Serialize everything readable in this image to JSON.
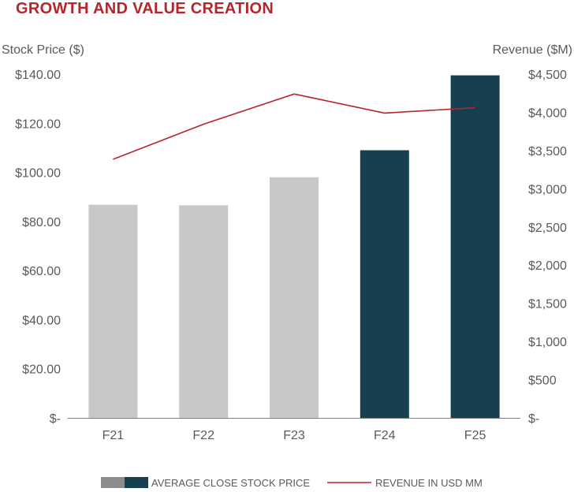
{
  "chart_data": {
    "type": "bar+line",
    "title": "GROWTH AND VALUE CREATION",
    "categories": [
      "F21",
      "F22",
      "F23",
      "F24",
      "F25"
    ],
    "series": [
      {
        "name": "AVERAGE CLOSE STOCK PRICE",
        "type": "bar",
        "axis": "left",
        "values": [
          86.8,
          86.6,
          98.0,
          109.0,
          139.5
        ],
        "colors": [
          "#c9c8c8",
          "#c9c8c8",
          "#c9c8c8",
          "#16404f",
          "#16404f"
        ]
      },
      {
        "name": "REVENUE IN USD MM",
        "type": "line",
        "axis": "right",
        "values": [
          3385,
          3845,
          4240,
          3990,
          4060
        ],
        "color": "#b5262c"
      }
    ],
    "left_axis": {
      "label": "Stock Price ($)",
      "ylim": [
        0,
        140
      ],
      "ticks": [
        0,
        20,
        40,
        60,
        80,
        100,
        120,
        140
      ],
      "tick_labels": [
        "$-",
        "$20.00",
        "$40.00",
        "$60.00",
        "$80.00",
        "$100.00",
        "$120.00",
        "$140.00"
      ]
    },
    "right_axis": {
      "label": "Revenue ($M)",
      "ylim": [
        0,
        4500
      ],
      "ticks": [
        0,
        500,
        1000,
        1500,
        2000,
        2500,
        3000,
        3500,
        4000,
        4500
      ],
      "tick_labels": [
        "$-",
        "$500",
        "$1,000",
        "$1,500",
        "$2,000",
        "$2,500",
        "$3,000",
        "$3,500",
        "$4,000",
        "$4,500"
      ]
    },
    "legend": {
      "placement": "bottom",
      "bar_label": "AVERAGE CLOSE STOCK PRICE",
      "line_label": "REVENUE IN USD MM",
      "bar_swatch_colors": [
        "#8c8b8b",
        "#16404f"
      ]
    },
    "grid": false
  },
  "colors": {
    "title": "#b5262c",
    "text": "#5a5a5a",
    "axis_line": "#7f7f7f"
  }
}
